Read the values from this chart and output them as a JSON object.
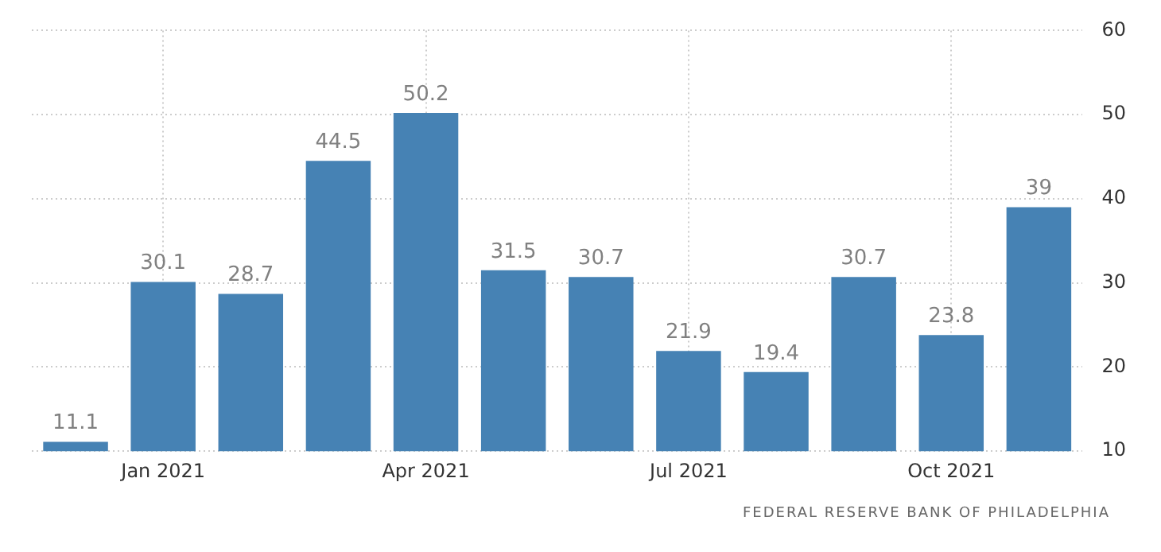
{
  "chart_data": {
    "type": "bar",
    "categories": [
      null,
      "Jan 2021",
      null,
      null,
      "Apr 2021",
      null,
      null,
      "Jul 2021",
      null,
      null,
      "Oct 2021",
      null
    ],
    "values": [
      11.1,
      30.1,
      28.7,
      44.5,
      50.2,
      31.5,
      30.7,
      21.9,
      19.4,
      30.7,
      23.8,
      39
    ],
    "color": "#4682b4",
    "ylim": [
      10,
      60
    ],
    "yticks": [
      10,
      20,
      30,
      40,
      50,
      60
    ],
    "grid": true,
    "data_labels": true,
    "annotations": [
      "FEDERAL RESERVE BANK OF PHILADELPHIA"
    ]
  }
}
